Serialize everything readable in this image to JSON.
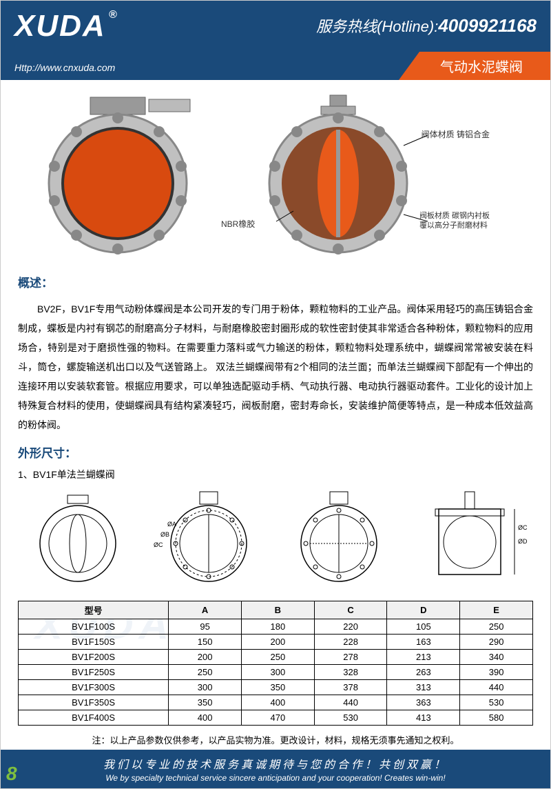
{
  "header": {
    "logo": "XUDA",
    "logo_mark": "®",
    "hotline_label": "服务热线(Hotline):",
    "hotline_number": "4009921168",
    "website": "Http://www.cnxuda.com",
    "product_title": "气动水泥蝶阀"
  },
  "image_labels": {
    "nbr": "NBR橡胶",
    "body_material": "阀体材质 铸铝合金",
    "disc_material": "阀板材质 碳钢内衬板\n覆以高分子耐磨材料"
  },
  "overview_title": "概述：",
  "description_text": "BV2F，BV1F专用气动粉体蝶阀是本公司开发的专门用于粉体，颗粒物料的工业产品。阀体采用轻巧的高压铸铝合金制成，蝶板是内衬有钢芯的耐磨高分子材料，与耐磨橡胶密封圈形成的软性密封使其非常适合各种粉体，颗粒物料的应用场合，特别是对于磨损性强的物料。在需要重力落料或气力输送的粉体，颗粒物料处理系统中，蝴蝶阀常常被安装在料斗，筒仓，螺旋输送机出口以及气送管路上。 双法兰蝴蝶阀带有2个相同的法兰面；而单法兰蝴蝶阀下部配有一个伸出的连接环用以安装软套管。根据应用要求，可以单独选配驱动手柄、气动执行器、电动执行器驱动套件。工业化的设计加上特殊复合材料的使用，使蝴蝶阀具有结构紧凑轻巧，阀板耐磨，密封寿命长，安装维护简便等特点，是一种成本低效益高的粉体阀。",
  "dimensions_title": "外形尺寸：",
  "dimensions_subtitle": "1、BV1F单法兰蝴蝶阀",
  "spec_table": {
    "type": "table",
    "columns": [
      "型号",
      "A",
      "B",
      "C",
      "D",
      "E"
    ],
    "rows": [
      [
        "BV1F100S",
        "95",
        "180",
        "220",
        "105",
        "250"
      ],
      [
        "BV1F150S",
        "150",
        "200",
        "228",
        "163",
        "290"
      ],
      [
        "BV1F200S",
        "200",
        "250",
        "278",
        "213",
        "340"
      ],
      [
        "BV1F250S",
        "250",
        "300",
        "328",
        "263",
        "390"
      ],
      [
        "BV1F300S",
        "300",
        "350",
        "378",
        "313",
        "440"
      ],
      [
        "BV1F350S",
        "350",
        "400",
        "440",
        "363",
        "530"
      ],
      [
        "BV1F400S",
        "400",
        "470",
        "530",
        "413",
        "580"
      ]
    ],
    "header_bg": "#f0f0f0",
    "border_color": "#000000"
  },
  "note": "注：以上产品参数仅供参考，以产品实物为准。更改设计，材料，规格无须事先通知之权利。",
  "footer": {
    "slogan_cn": "我们以专业的技术服务真诚期待与您的合作！共创双赢！",
    "slogan_en": "We by specialty technical service sincere anticipation and your cooperation! Creates win-win!"
  },
  "page_number": "8",
  "watermark": "XUDA",
  "colors": {
    "header_bg": "#1a4a7a",
    "accent": "#e85a1a",
    "valve_disc": "#e85a1a",
    "valve_body": "#b8b8b8",
    "page_num": "#7fbf3f"
  }
}
